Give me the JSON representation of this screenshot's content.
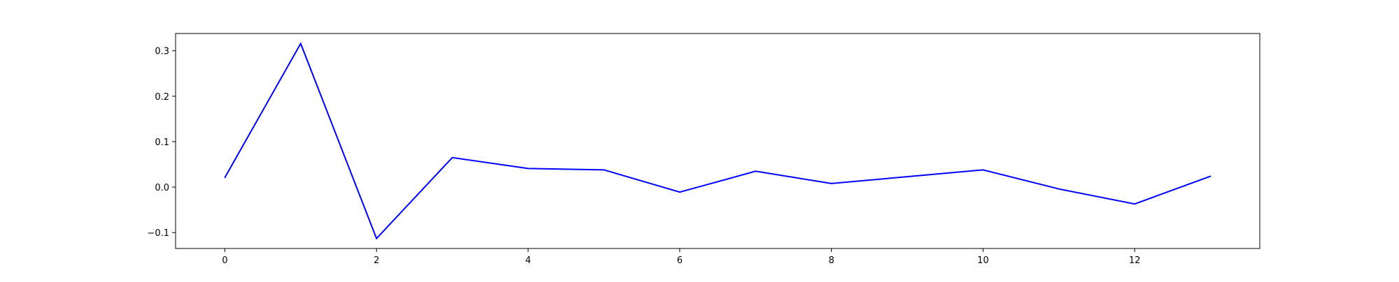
{
  "chart_data": {
    "type": "line",
    "title": "",
    "xlabel": "",
    "ylabel": "",
    "x": [
      0,
      1,
      2,
      3,
      4,
      5,
      6,
      7,
      8,
      9,
      10,
      11,
      12,
      13
    ],
    "series": [
      {
        "color": "#0000ff",
        "values": [
          0.021,
          0.316,
          -0.113,
          0.065,
          0.041,
          0.038,
          -0.011,
          0.035,
          0.008,
          0.023,
          0.038,
          -0.004,
          -0.037,
          0.024
        ]
      }
    ],
    "xlim": [
      -0.65,
      13.65
    ],
    "ylim": [
      -0.135,
      0.338
    ],
    "xticks": [
      0,
      2,
      4,
      6,
      8,
      10,
      12
    ],
    "xtick_labels": [
      "0",
      "2",
      "4",
      "6",
      "8",
      "10",
      "12"
    ],
    "yticks": [
      -0.1,
      0.0,
      0.1,
      0.2,
      0.3
    ],
    "ytick_labels": [
      "−0.1",
      "0.0",
      "0.1",
      "0.2",
      "0.3"
    ],
    "grid": false,
    "legend": "none"
  }
}
